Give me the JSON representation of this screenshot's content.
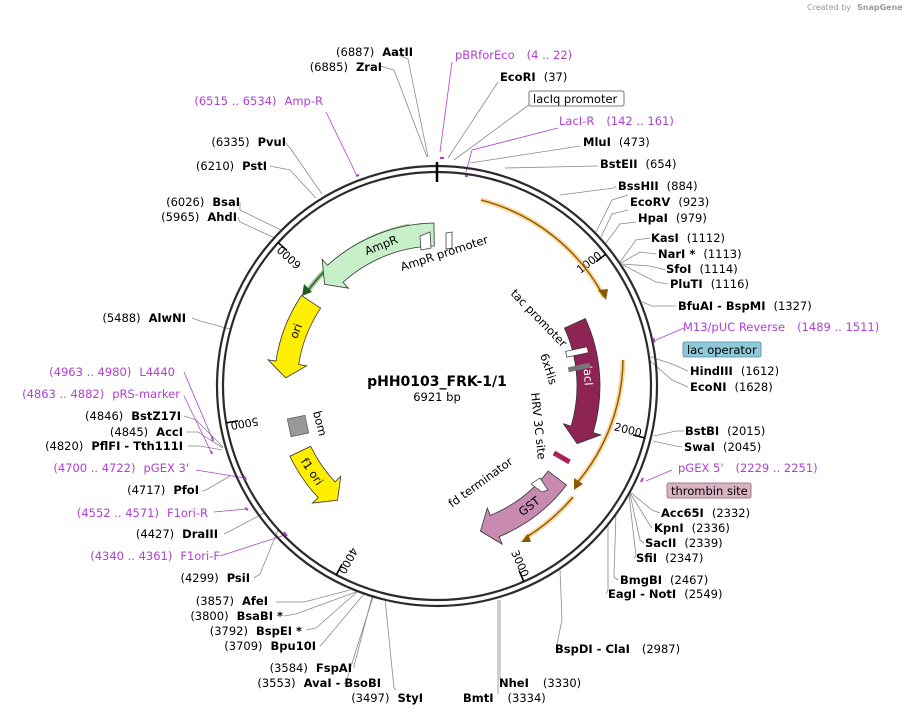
{
  "app": {
    "credit_prefix": "Created by",
    "credit_brand": "SnapGene"
  },
  "plasmid": {
    "name": "pHH0103_FRK-1/1",
    "size_label": "6921 bp",
    "length": 6921
  },
  "colors": {
    "backbone": "#2b2b2b",
    "primer": "#b040d0",
    "marker_line": "#888888",
    "lacI": "#8e2454",
    "GST": "#c98ab0",
    "AmpR": "#c8f0c8",
    "ori": "#ffee00",
    "f1ori": "#ffee00",
    "orange_orf": "#f6b24a",
    "lac_operator_box": "#8fc8d8",
    "thrombin_box": "#d9b3c3"
  },
  "ticks": [
    {
      "pos": 1000,
      "label": "1000"
    },
    {
      "pos": 2000,
      "label": "2000"
    },
    {
      "pos": 3000,
      "label": "3000"
    },
    {
      "pos": 4000,
      "label": "4000"
    },
    {
      "pos": 5000,
      "label": "5000"
    },
    {
      "pos": 6000,
      "label": "6000"
    }
  ],
  "features": [
    {
      "name": "lacI",
      "start": 1260,
      "end": 2160,
      "strand": 1,
      "color": "#8e2454",
      "text_color": "#ffffff",
      "style": "arrow"
    },
    {
      "name": "GST",
      "start": 2450,
      "end": 3140,
      "strand": 1,
      "color": "#c98ab0",
      "text_color": "#000000",
      "style": "arrow"
    },
    {
      "name": "AmpR",
      "start": 6900,
      "end": 6000,
      "strand": -1,
      "color": "#c8f0c8",
      "text_color": "#000000",
      "style": "arrow"
    },
    {
      "name": "ori",
      "start": 5840,
      "end": 5250,
      "strand": -1,
      "color": "#ffee00",
      "text_color": "#000000",
      "style": "arrow"
    },
    {
      "name": "f1 ori",
      "start": 4700,
      "end": 4250,
      "strand": -1,
      "color": "#ffee00",
      "text_color": "#000000",
      "style": "arrow"
    }
  ],
  "feature_labels": [
    {
      "text": "AmpR promoter"
    },
    {
      "text": "tac promoter"
    },
    {
      "text": "6xHis"
    },
    {
      "text": "HRV 3C site"
    },
    {
      "text": "bom"
    },
    {
      "text": "fd terminator"
    }
  ],
  "boxed_labels": [
    {
      "text": "lacIq promoter",
      "style": "white"
    },
    {
      "text": "lac operator",
      "style": "blue"
    },
    {
      "text": "thrombin site",
      "style": "pink"
    }
  ],
  "sites_right": [
    {
      "name": "EcoRI",
      "pos": "(37)"
    },
    {
      "name": "MluI",
      "pos": "(473)"
    },
    {
      "name": "BstEII",
      "pos": "(654)"
    },
    {
      "name": "BssHII",
      "pos": "(884)"
    },
    {
      "name": "EcoRV",
      "pos": "(923)"
    },
    {
      "name": "HpaI",
      "pos": "(979)"
    },
    {
      "name": "KasI",
      "pos": "(1112)"
    },
    {
      "name": "NarI *",
      "pos": "(1113)"
    },
    {
      "name": "SfoI",
      "pos": "(1114)"
    },
    {
      "name": "PluTI",
      "pos": "(1116)"
    },
    {
      "name": "BfuAI - BspMI",
      "pos": "(1327)"
    },
    {
      "name": "HindIII",
      "pos": "(1612)"
    },
    {
      "name": "EcoNI",
      "pos": "(1628)"
    },
    {
      "name": "BstBI",
      "pos": "(2015)"
    },
    {
      "name": "SwaI",
      "pos": "(2045)"
    },
    {
      "name": "Acc65I",
      "pos": "(2332)"
    },
    {
      "name": "KpnI",
      "pos": "(2336)"
    },
    {
      "name": "SacII",
      "pos": "(2339)"
    },
    {
      "name": "SfiI",
      "pos": "(2347)"
    },
    {
      "name": "BmgBI",
      "pos": "(2467)"
    },
    {
      "name": "EagI - NotI",
      "pos": "(2549)"
    },
    {
      "name": "BspDI - ClaI",
      "pos": "(2987)"
    },
    {
      "name": "NheI",
      "pos": "(3330)"
    },
    {
      "name": "BmtI",
      "pos": "(3334)"
    }
  ],
  "sites_left": [
    {
      "name": "AatII",
      "pos": "(6887)"
    },
    {
      "name": "ZraI",
      "pos": "(6885)"
    },
    {
      "name": "PvuI",
      "pos": "(6335)"
    },
    {
      "name": "PstI",
      "pos": "(6210)"
    },
    {
      "name": "BsaI",
      "pos": "(6026)"
    },
    {
      "name": "AhdI",
      "pos": "(5965)"
    },
    {
      "name": "AlwNI",
      "pos": "(5488)"
    },
    {
      "name": "BstZ17I",
      "pos": "(4846)"
    },
    {
      "name": "AccI",
      "pos": "(4845)"
    },
    {
      "name": "PflFI - Tth111I",
      "pos": "(4820)"
    },
    {
      "name": "PfoI",
      "pos": "(4717)"
    },
    {
      "name": "DraIII",
      "pos": "(4427)"
    },
    {
      "name": "PsiI",
      "pos": "(4299)"
    },
    {
      "name": "AfeI",
      "pos": "(3857)"
    },
    {
      "name": "BsaBI *",
      "pos": "(3800)"
    },
    {
      "name": "BspEI *",
      "pos": "(3792)"
    },
    {
      "name": "Bpu10I",
      "pos": "(3709)"
    },
    {
      "name": "FspAI",
      "pos": "(3584)"
    },
    {
      "name": "AvaI - BsoBI",
      "pos": "(3553)"
    },
    {
      "name": "StyI",
      "pos": "(3497)"
    }
  ],
  "primers": [
    {
      "name": "pBRforEco",
      "range": "(4 .. 22)"
    },
    {
      "name": "LacI-R",
      "range": "(142 .. 161)"
    },
    {
      "name": "M13/pUC Reverse",
      "range": "(1489 .. 1511)"
    },
    {
      "name": "pGEX 5'",
      "range": "(2229 .. 2251)"
    },
    {
      "name": "Amp-R",
      "range": "(6515 .. 6534)"
    },
    {
      "name": "L4440",
      "range": "(4963 .. 4980)"
    },
    {
      "name": "pRS-marker",
      "range": "(4863 .. 4882)"
    },
    {
      "name": "pGEX 3'",
      "range": "(4700 .. 4722)"
    },
    {
      "name": "F1ori-R",
      "range": "(4552 .. 4571)"
    },
    {
      "name": "F1ori-F",
      "range": "(4340 .. 4361)"
    }
  ]
}
